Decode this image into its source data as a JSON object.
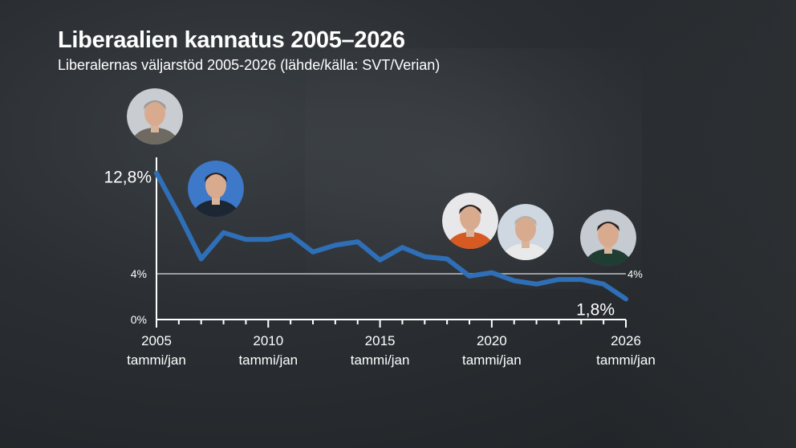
{
  "title": "Liberaalien kannatus 2005–2026",
  "subtitle": "Liberalernas väljarstöd 2005-2026 (lähde/källa: SVT/Verian)",
  "chart_data": {
    "type": "line",
    "title": "Liberaalien kannatus 2005–2026",
    "subtitle": "Liberalernas väljarstöd 2005-2026 (lähde/källa: SVT/Verian)",
    "xlabel": "",
    "ylabel": "",
    "xlim": [
      2005,
      2026
    ],
    "ylim": [
      0,
      14
    ],
    "x_ticks": [
      {
        "year": 2005,
        "label": "2005",
        "sub": "tammi/jan"
      },
      {
        "year": 2010,
        "label": "2010",
        "sub": "tammi/jan"
      },
      {
        "year": 2015,
        "label": "2015",
        "sub": "tammi/jan"
      },
      {
        "year": 2020,
        "label": "2020",
        "sub": "tammi/jan"
      },
      {
        "year": 2026,
        "label": "2026",
        "sub": "tammi/jan"
      }
    ],
    "y_ticks": [
      {
        "value": 0,
        "label": "0%"
      },
      {
        "value": 4,
        "label": "4%"
      }
    ],
    "threshold": {
      "value": 4,
      "label": "4%"
    },
    "color": "#2f6fb7",
    "threshold_color": "#9a9ea2",
    "series": [
      {
        "x": [
          2005,
          2006,
          2007,
          2008,
          2009,
          2010,
          2011,
          2012,
          2013,
          2014,
          2015,
          2016,
          2017,
          2018,
          2019,
          2020,
          2021,
          2022,
          2023,
          2024,
          2025,
          2026
        ],
        "values": [
          12.8,
          9.2,
          5.3,
          7.6,
          7.0,
          7.0,
          7.4,
          5.9,
          6.5,
          6.8,
          5.2,
          6.3,
          5.5,
          5.3,
          3.8,
          4.1,
          3.4,
          3.1,
          3.5,
          3.5,
          3.1,
          1.8
        ]
      }
    ],
    "annotations": [
      {
        "x": 2005,
        "value": 12.8,
        "label": "12,8%"
      },
      {
        "x": 2026,
        "value": 1.8,
        "label": "1,8%"
      }
    ]
  },
  "portraits": [
    {
      "name": "leader-portrait-1",
      "icon": "person-grey-suit-icon",
      "bg": "#c9ccd0",
      "suit": "#6e6a62"
    },
    {
      "name": "leader-portrait-2",
      "icon": "person-dark-suit-icon",
      "bg": "#3d78c9",
      "suit": "#1d2633"
    },
    {
      "name": "leader-portrait-3",
      "icon": "person-orange-top-icon",
      "bg": "#e8e8ea",
      "suit": "#d85a23"
    },
    {
      "name": "leader-portrait-4",
      "icon": "person-light-shirt-icon",
      "bg": "#cfd7e1",
      "suit": "#e9e9e9"
    },
    {
      "name": "leader-portrait-5",
      "icon": "person-dark-jacket-icon",
      "bg": "#c5cbd1",
      "suit": "#1f3d32"
    }
  ]
}
